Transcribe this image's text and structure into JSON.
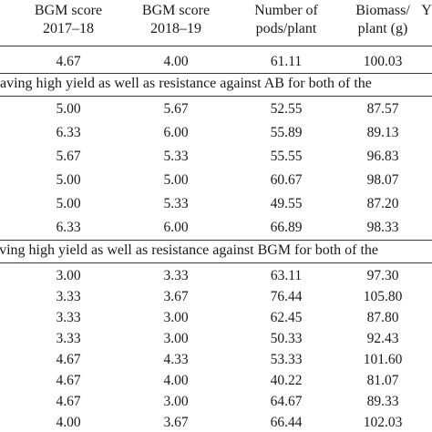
{
  "header": {
    "col1": [
      "BGM score",
      "2017–18"
    ],
    "col2": [
      "BGM score",
      "2018–19"
    ],
    "col3": [
      "Number of",
      "pods/plant"
    ],
    "col4": [
      "Biomass/",
      "plant (g)"
    ],
    "col5_partial": "Y"
  },
  "first_row": [
    "4.67",
    "4.00",
    "61.11",
    "100.03"
  ],
  "sections": [
    {
      "title": "having high yield as well as resistance against AB for both of the",
      "rows": [
        [
          "5.00",
          "5.67",
          "52.55",
          "87.57"
        ],
        [
          "6.33",
          "6.00",
          "55.89",
          "89.13"
        ],
        [
          "5.67",
          "5.33",
          "55.55",
          "96.83"
        ],
        [
          "5.00",
          "5.00",
          "60.67",
          "98.07"
        ],
        [
          "5.00",
          "5.33",
          "49.55",
          "87.20"
        ],
        [
          "6.33",
          "6.00",
          "66.89",
          "98.33"
        ]
      ]
    },
    {
      "title": "aving high yield as well as resistance against BGM for both of the",
      "rows": [
        [
          "3.00",
          "3.33",
          "63.11",
          "97.30"
        ],
        [
          "3.33",
          "3.67",
          "76.44",
          "105.80"
        ],
        [
          "3.33",
          "3.00",
          "62.45",
          "87.80"
        ],
        [
          "3.33",
          "3.00",
          "50.33",
          "92.43"
        ],
        [
          "4.67",
          "4.33",
          "53.33",
          "101.60"
        ],
        [
          "4.67",
          "4.00",
          "40.22",
          "81.07"
        ],
        [
          "4.67",
          "3.00",
          "64.67",
          "89.33"
        ],
        [
          "4.00",
          "3.67",
          "66.44",
          "102.03"
        ]
      ]
    }
  ]
}
